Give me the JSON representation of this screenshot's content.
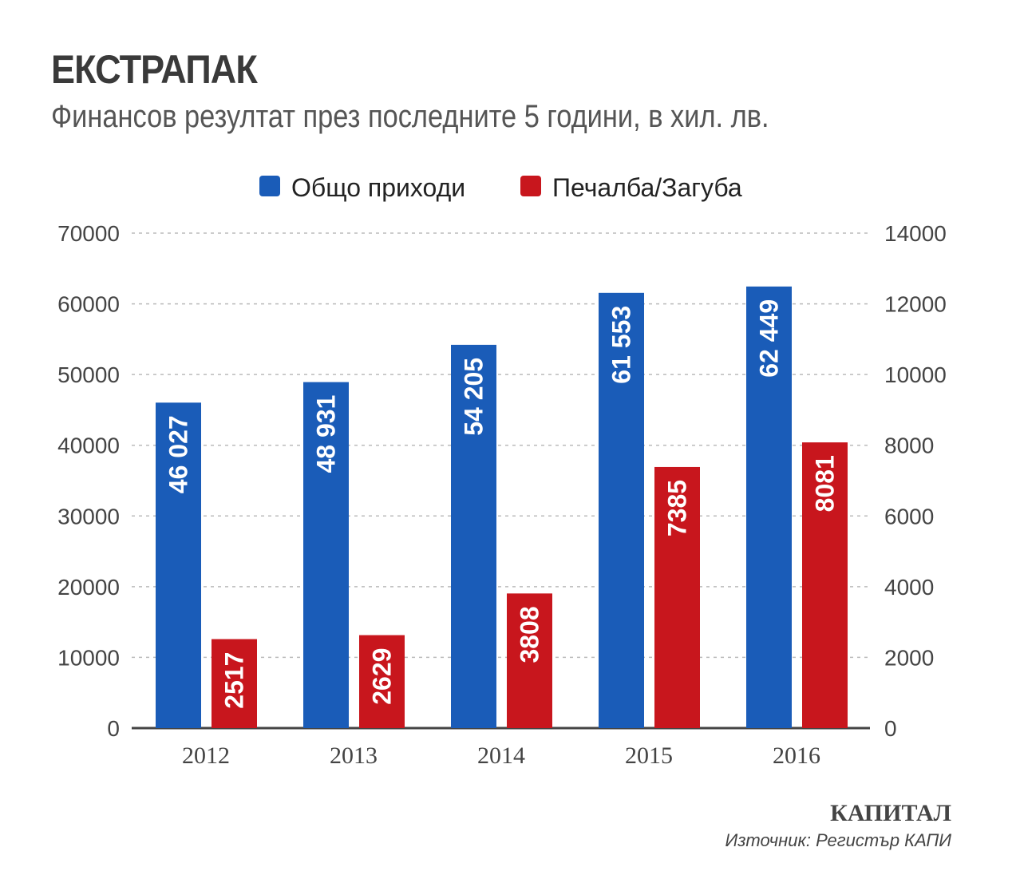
{
  "chart_data": {
    "type": "bar",
    "title": "ЕКСТРАПАК",
    "subtitle": "Финансов резултат през последните 5 години, в хил. лв.",
    "categories": [
      "2012",
      "2013",
      "2014",
      "2015",
      "2016"
    ],
    "series": [
      {
        "name": "Общо приходи",
        "axis": "left",
        "color": "#1a5cb8",
        "values": [
          46027,
          48931,
          54205,
          61553,
          62449
        ],
        "labels": [
          "46 027",
          "48 931",
          "54 205",
          "61 553",
          "62 449"
        ]
      },
      {
        "name": "Печалба/Загуба",
        "axis": "right",
        "color": "#c8161d",
        "values": [
          2517,
          2629,
          3808,
          7385,
          8081
        ],
        "labels": [
          "2517",
          "2629",
          "3808",
          "7385",
          "8081"
        ]
      }
    ],
    "y_left": {
      "range": [
        0,
        70000
      ],
      "ticks": [
        "0",
        "10000",
        "20000",
        "30000",
        "40000",
        "50000",
        "60000",
        "70000"
      ]
    },
    "y_right": {
      "range": [
        0,
        14000
      ],
      "ticks": [
        "0",
        "2000",
        "4000",
        "6000",
        "8000",
        "10000",
        "12000",
        "14000"
      ]
    },
    "grid": true,
    "legend": "top-center"
  },
  "footer": {
    "brand": "КАПИТАЛ",
    "source": "Източник: Регистър КАПИ"
  }
}
